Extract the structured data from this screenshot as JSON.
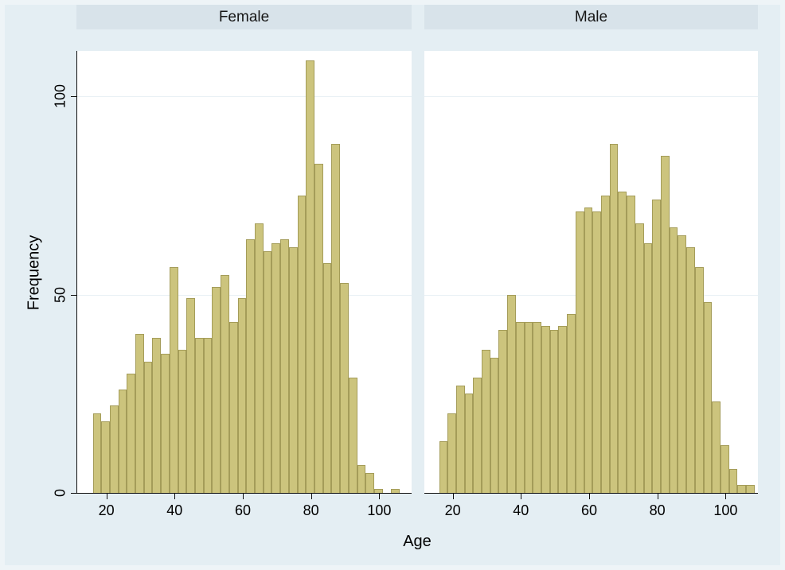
{
  "chart_data": {
    "type": "bar",
    "subtype": "histogram-by-group",
    "title": "",
    "xlabel": "Age",
    "ylabel": "Frequency",
    "bin_start": 16,
    "bin_width": 2.5,
    "x_ticks": [
      20,
      40,
      60,
      80,
      100
    ],
    "y_ticks": [
      0,
      50,
      100
    ],
    "xlim": [
      14,
      110
    ],
    "ylim": [
      0,
      111
    ],
    "grid": "horizontal",
    "legend": "none",
    "panels": [
      {
        "title": "Female",
        "values": [
          20,
          18,
          22,
          26,
          30,
          40,
          33,
          39,
          35,
          57,
          36,
          49,
          39,
          39,
          52,
          55,
          43,
          49,
          64,
          68,
          61,
          63,
          64,
          62,
          75,
          109,
          83,
          58,
          88,
          53,
          29,
          7,
          5,
          1,
          0,
          1,
          0
        ]
      },
      {
        "title": "Male",
        "values": [
          13,
          20,
          27,
          25,
          29,
          36,
          34,
          41,
          50,
          43,
          43,
          43,
          42,
          41,
          42,
          45,
          71,
          72,
          71,
          75,
          88,
          76,
          75,
          68,
          63,
          74,
          85,
          67,
          65,
          62,
          57,
          48,
          23,
          12,
          6,
          2,
          2
        ]
      }
    ],
    "colors": {
      "bar_fill": "#ccc47d",
      "bar_stroke": "#a49c59",
      "canvas_bg": "#e4eef3",
      "header_bg": "#d8e3ea",
      "grid": "#e9f1f5",
      "axis": "#0f0f0f",
      "text": "#000000"
    }
  }
}
